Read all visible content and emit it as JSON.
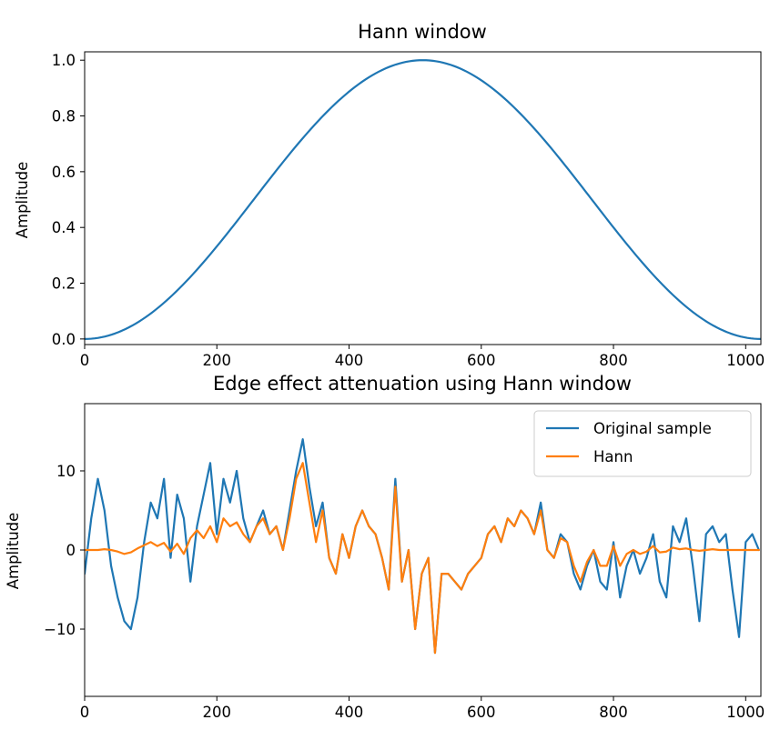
{
  "chart_data": [
    {
      "type": "line",
      "title": "Hann window",
      "xlabel": "",
      "ylabel": "Amplitude",
      "xlim": [
        0,
        1023
      ],
      "ylim": [
        -0.02,
        1.03
      ],
      "xticks": [
        0,
        200,
        400,
        600,
        800,
        1000
      ],
      "yticks": [
        0.0,
        0.2,
        0.4,
        0.6,
        0.8,
        1.0
      ],
      "ytick_labels": [
        "0.0",
        "0.2",
        "0.4",
        "0.6",
        "0.8",
        "1.0"
      ],
      "xtick_labels": [
        "0",
        "200",
        "400",
        "600",
        "800",
        "1000"
      ],
      "grid": false,
      "series": [
        {
          "color": "#1f77b4",
          "x": [
            0,
            64,
            128,
            192,
            256,
            320,
            384,
            448,
            512,
            576,
            640,
            704,
            768,
            832,
            896,
            960,
            1023
          ],
          "y": [
            0.0,
            0.038,
            0.146,
            0.309,
            0.5,
            0.691,
            0.854,
            0.962,
            1.0,
            0.962,
            0.854,
            0.691,
            0.5,
            0.309,
            0.146,
            0.038,
            0.0
          ]
        }
      ]
    },
    {
      "type": "line",
      "title": "Edge effect attenuation using Hann window",
      "xlabel": "",
      "ylabel": "Amplitude",
      "xlim": [
        0,
        1023
      ],
      "ylim": [
        -18.5,
        18.5
      ],
      "xticks": [
        0,
        200,
        400,
        600,
        800,
        1000
      ],
      "yticks": [
        -10,
        0,
        10
      ],
      "ytick_labels": [
        "−10",
        "0",
        "10"
      ],
      "xtick_labels": [
        "0",
        "200",
        "400",
        "600",
        "800",
        "1000"
      ],
      "grid": false,
      "legend_position": "top-right",
      "series": [
        {
          "name": "Original sample",
          "color": "#1f77b4",
          "x": [
            0,
            10,
            20,
            30,
            40,
            50,
            60,
            70,
            80,
            90,
            100,
            110,
            120,
            130,
            140,
            150,
            160,
            170,
            180,
            190,
            200,
            210,
            220,
            230,
            240,
            250,
            260,
            270,
            280,
            290,
            300,
            310,
            320,
            330,
            340,
            350,
            360,
            370,
            380,
            390,
            400,
            410,
            420,
            430,
            440,
            450,
            460,
            470,
            480,
            490,
            500,
            510,
            520,
            530,
            540,
            550,
            560,
            570,
            580,
            590,
            600,
            610,
            620,
            630,
            640,
            650,
            660,
            670,
            680,
            690,
            700,
            710,
            720,
            730,
            740,
            750,
            760,
            770,
            780,
            790,
            800,
            810,
            820,
            830,
            840,
            850,
            860,
            870,
            880,
            890,
            900,
            910,
            920,
            930,
            940,
            950,
            960,
            970,
            980,
            990,
            1000,
            1010,
            1020
          ],
          "y": [
            -3,
            4,
            9,
            5,
            -2,
            -6,
            -9,
            -10,
            -6,
            1,
            6,
            4,
            9,
            -1,
            7,
            4,
            -4,
            3,
            7,
            11,
            2,
            9,
            6,
            10,
            4,
            1,
            3,
            5,
            2,
            3,
            0,
            5,
            10,
            14,
            8,
            3,
            6,
            -1,
            -3,
            2,
            -1,
            3,
            5,
            3,
            2,
            -1,
            -5,
            9,
            -4,
            0,
            -10,
            -3,
            -1,
            -13,
            -3,
            -3,
            -4,
            -5,
            -3,
            -2,
            -1,
            2,
            3,
            1,
            4,
            3,
            5,
            4,
            2,
            6,
            0,
            -1,
            2,
            1,
            -3,
            -5,
            -2,
            0,
            -4,
            -5,
            1,
            -6,
            -2,
            0,
            -3,
            -1,
            2,
            -4,
            -6,
            3,
            1,
            4,
            -2,
            -9,
            2,
            3,
            1,
            2,
            -5,
            -11,
            1,
            2,
            0
          ]
        },
        {
          "name": "Hann",
          "color": "#ff7f0e",
          "x": [
            0,
            10,
            20,
            30,
            40,
            50,
            60,
            70,
            80,
            90,
            100,
            110,
            120,
            130,
            140,
            150,
            160,
            170,
            180,
            190,
            200,
            210,
            220,
            230,
            240,
            250,
            260,
            270,
            280,
            290,
            300,
            310,
            320,
            330,
            340,
            350,
            360,
            370,
            380,
            390,
            400,
            410,
            420,
            430,
            440,
            450,
            460,
            470,
            480,
            490,
            500,
            510,
            520,
            530,
            540,
            550,
            560,
            570,
            580,
            590,
            600,
            610,
            620,
            630,
            640,
            650,
            660,
            670,
            680,
            690,
            700,
            710,
            720,
            730,
            740,
            750,
            760,
            770,
            780,
            790,
            800,
            810,
            820,
            830,
            840,
            850,
            860,
            870,
            880,
            890,
            900,
            910,
            920,
            930,
            940,
            950,
            960,
            970,
            980,
            990,
            1000,
            1010,
            1020
          ],
          "y": [
            0,
            0,
            0,
            0.1,
            0,
            -0.2,
            -0.5,
            -0.3,
            0.2,
            0.6,
            1,
            0.5,
            0.9,
            -0.2,
            0.8,
            -0.5,
            1.5,
            2.5,
            1.5,
            3,
            1,
            4,
            3,
            3.5,
            2,
            1,
            3,
            4,
            2,
            3,
            0,
            4,
            9,
            11,
            6,
            1,
            5,
            -1,
            -3,
            2,
            -1,
            3,
            5,
            3,
            2,
            -1,
            -5,
            8,
            -4,
            0,
            -10,
            -3,
            -1,
            -13,
            -3,
            -3,
            -4,
            -5,
            -3,
            -2,
            -1,
            2,
            3,
            1,
            4,
            3,
            5,
            4,
            2,
            5,
            0,
            -1,
            1.5,
            1,
            -2,
            -4,
            -1.5,
            0,
            -2,
            -2,
            0.5,
            -2,
            -0.5,
            0,
            -0.5,
            -0.2,
            0.5,
            -0.3,
            -0.2,
            0.3,
            0.1,
            0.2,
            0,
            -0.1,
            0,
            0.1,
            0,
            0,
            0,
            0,
            0,
            0,
            0
          ]
        }
      ]
    }
  ]
}
